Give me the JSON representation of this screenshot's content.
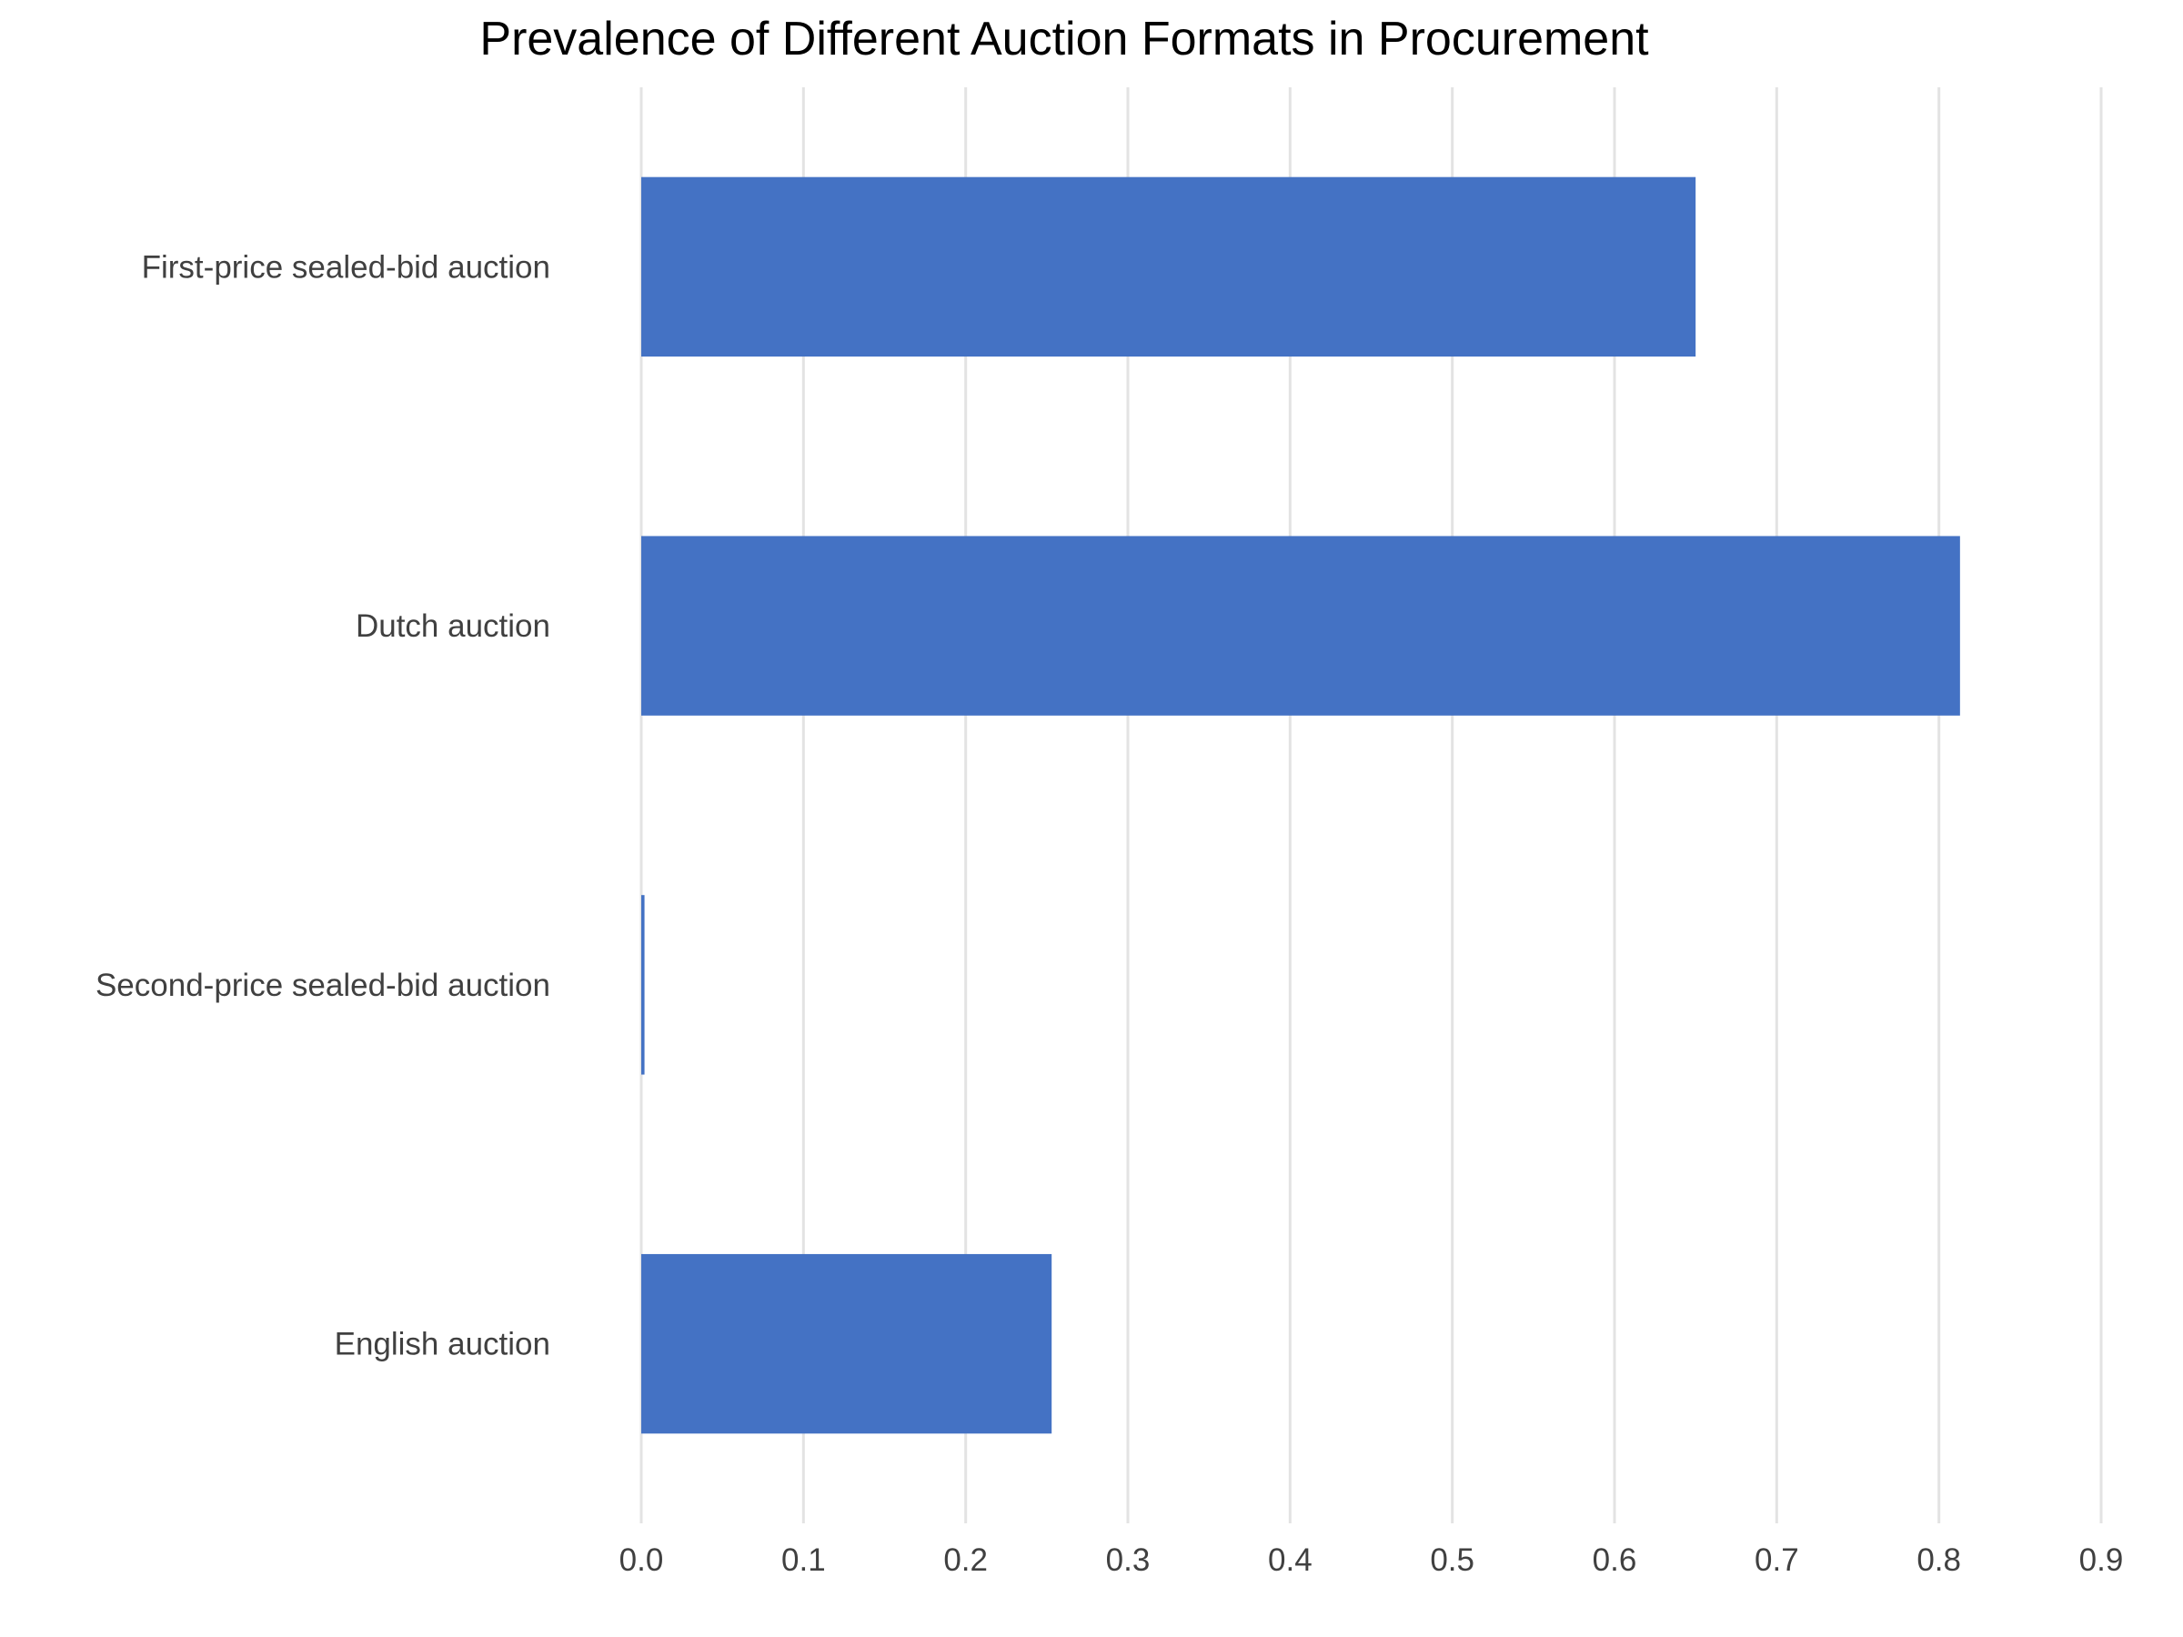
{
  "chart_data": {
    "type": "bar",
    "orientation": "horizontal",
    "title": "Prevalence of Different Auction Formats in Procurement",
    "xlabel": "",
    "ylabel": "",
    "categories": [
      "First-price sealed-bid auction",
      "Dutch auction",
      "Second-price sealed-bid auction",
      "English auction"
    ],
    "values": [
      0.65,
      0.813,
      0.002,
      0.253
    ],
    "xlim": [
      0,
      0.9
    ],
    "x_ticks": [
      "0.0",
      "0.1",
      "0.2",
      "0.3",
      "0.4",
      "0.5",
      "0.6",
      "0.7",
      "0.8",
      "0.9"
    ],
    "grid": "vertical",
    "legend": "none",
    "bar_color": "#4472c4"
  }
}
